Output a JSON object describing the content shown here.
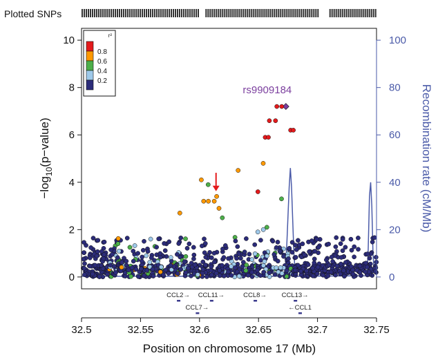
{
  "chart_data": {
    "type": "scatter",
    "plotted_snps_label": "Plotted SNPs",
    "xlabel": "Position on chromosome 17 (Mb)",
    "ylabel_left": {
      "pre": "−log",
      "sub": "10",
      "post": "(p−value)"
    },
    "ylabel_right": "Recombination rate (cM/Mb)",
    "xlim": [
      32.5,
      32.75
    ],
    "ylim_left": [
      -0.5,
      10.5
    ],
    "ylim_right": [
      -5,
      105
    ],
    "x_ticks": [
      32.5,
      32.55,
      32.6,
      32.65,
      32.7,
      32.75
    ],
    "x_tick_labels": [
      "32.5",
      "32.55",
      "32.6",
      "32.65",
      "32.7",
      "32.75"
    ],
    "y_left_ticks": [
      0,
      2,
      4,
      6,
      8,
      10
    ],
    "y_left_tick_labels": [
      "0",
      "2",
      "4",
      "6",
      "8",
      "10"
    ],
    "y_right_ticks": [
      0,
      20,
      40,
      60,
      80,
      100
    ],
    "y_right_tick_labels": [
      "0",
      "20",
      "40",
      "60",
      "80",
      "100"
    ],
    "legend": {
      "title": "r²",
      "placement": "top-left",
      "labels": [
        "0.8",
        "0.6",
        "0.4",
        "0.2"
      ],
      "colors": [
        "#e41a1c",
        "#ff9900",
        "#4daf4a",
        "#9ec9ea",
        "#2c2c7a"
      ]
    },
    "lead_snp": {
      "label": "rs9909184",
      "x": 32.6732,
      "y": 7.2,
      "color": "#7b3f9e"
    },
    "annotation_arrow": {
      "x": 32.614,
      "y_from": 4.4,
      "y_to": 3.65,
      "color": "#e41a1c"
    },
    "recombination_color": "#4a5aa8",
    "recombination_rate": {
      "x": [
        32.5,
        32.67,
        32.671,
        32.672,
        32.673,
        32.674,
        32.675,
        32.676,
        32.677,
        32.678,
        32.679,
        32.68,
        32.681,
        32.682,
        32.683,
        32.742,
        32.743,
        32.744,
        32.745,
        32.746,
        32.747,
        32.748,
        32.75
      ],
      "y": [
        0.3,
        0.3,
        0.5,
        2,
        6,
        14,
        26,
        38,
        46,
        38,
        24,
        10,
        3,
        0.6,
        0.3,
        0.5,
        12,
        34,
        40,
        30,
        10,
        2,
        1
      ]
    },
    "plotted_snp_bars": [
      [
        32.5,
        32.6
      ],
      [
        32.605,
        32.7
      ],
      [
        32.71,
        32.75
      ]
    ],
    "genes": [
      {
        "name": "CCL2",
        "arrow": "→",
        "x": 32.582,
        "row": 0
      },
      {
        "name": "CCL11",
        "arrow": "→",
        "x": 32.61,
        "row": 0
      },
      {
        "name": "CCL8",
        "arrow": "→",
        "x": 32.647,
        "row": 0
      },
      {
        "name": "CCL13",
        "arrow": "→",
        "x": 32.681,
        "row": 0
      },
      {
        "name": "CCL7",
        "arrow": "→",
        "x": 32.598,
        "row": 1
      },
      {
        "name": "CCL1",
        "arrow": "←",
        "x": 32.685,
        "row": 1
      }
    ],
    "snps": [
      {
        "x": 32.6732,
        "y": 7.2,
        "r2": 1.0
      },
      {
        "x": 32.6655,
        "y": 7.2,
        "r2": 0.9
      },
      {
        "x": 32.6697,
        "y": 7.2,
        "r2": 0.9
      },
      {
        "x": 32.6592,
        "y": 6.6,
        "r2": 0.9
      },
      {
        "x": 32.6644,
        "y": 6.6,
        "r2": 0.9
      },
      {
        "x": 32.6772,
        "y": 6.2,
        "r2": 0.9
      },
      {
        "x": 32.6795,
        "y": 6.2,
        "r2": 0.9
      },
      {
        "x": 32.6557,
        "y": 5.9,
        "r2": 0.9
      },
      {
        "x": 32.6584,
        "y": 5.9,
        "r2": 0.9
      },
      {
        "x": 32.654,
        "y": 4.8,
        "r2": 0.7
      },
      {
        "x": 32.6327,
        "y": 4.5,
        "r2": 0.7
      },
      {
        "x": 32.6015,
        "y": 4.1,
        "r2": 0.7
      },
      {
        "x": 32.6073,
        "y": 3.9,
        "r2": 0.5
      },
      {
        "x": 32.6495,
        "y": 3.6,
        "r2": 0.9
      },
      {
        "x": 32.6145,
        "y": 3.4,
        "r2": 0.7
      },
      {
        "x": 32.6035,
        "y": 3.2,
        "r2": 0.7
      },
      {
        "x": 32.6075,
        "y": 3.2,
        "r2": 0.7
      },
      {
        "x": 32.6125,
        "y": 3.2,
        "r2": 0.7
      },
      {
        "x": 32.6695,
        "y": 3.3,
        "r2": 0.5
      },
      {
        "x": 32.5833,
        "y": 2.7,
        "r2": 0.7
      },
      {
        "x": 32.6165,
        "y": 2.9,
        "r2": 0.7
      },
      {
        "x": 32.6193,
        "y": 2.5,
        "r2": 0.5
      },
      {
        "x": 32.6571,
        "y": 2.1,
        "r2": 0.5
      },
      {
        "x": 32.6541,
        "y": 2.0,
        "r2": 0.3
      },
      {
        "x": 32.6494,
        "y": 1.9,
        "r2": 0.3
      }
    ]
  }
}
